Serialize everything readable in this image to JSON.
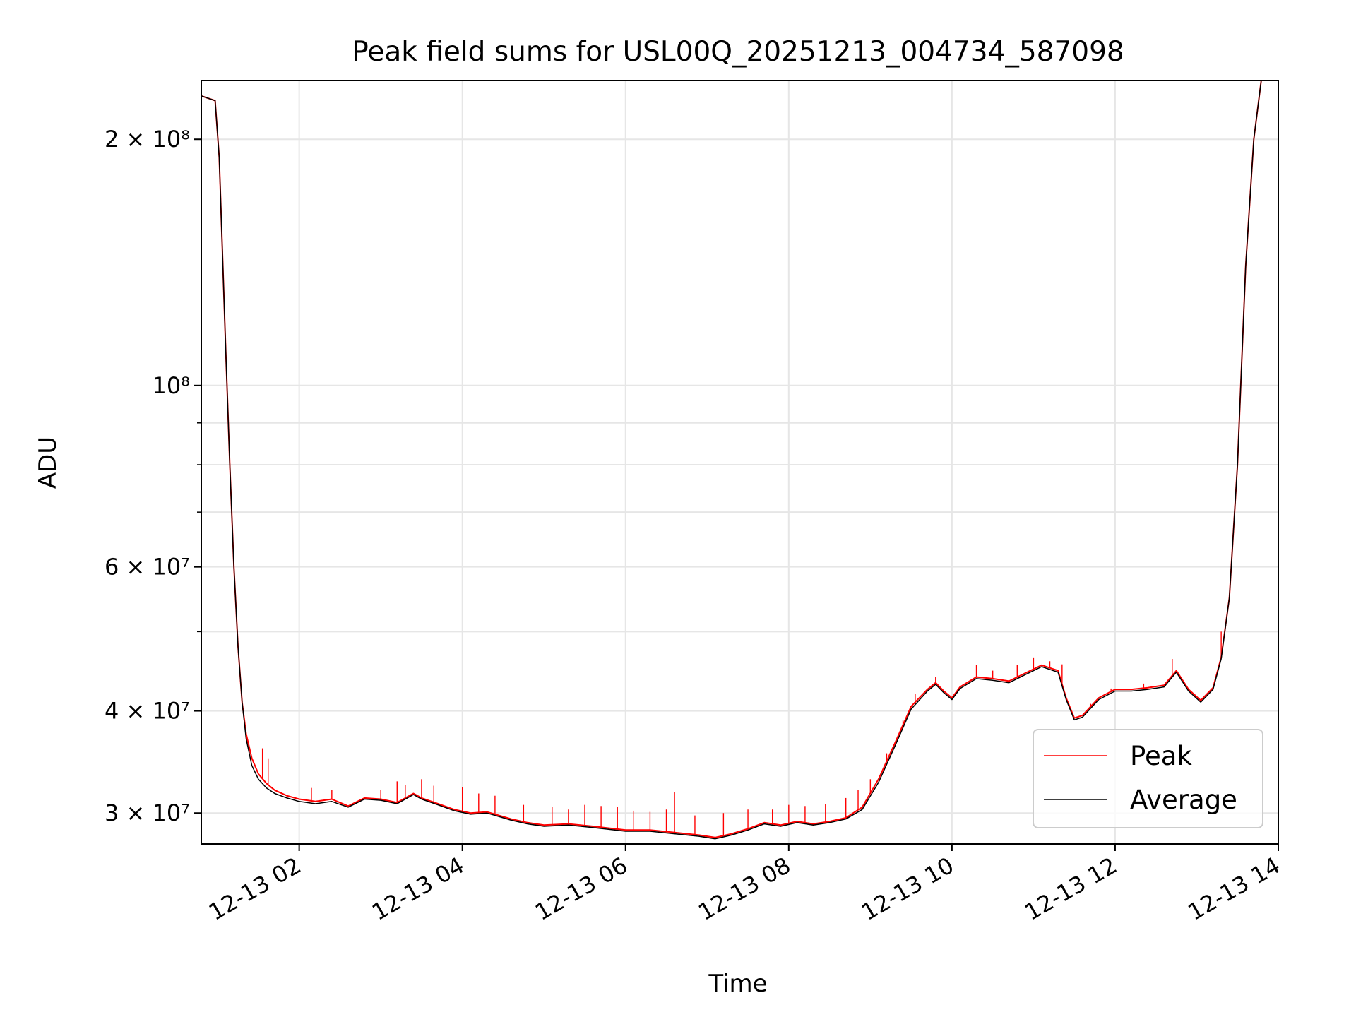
{
  "chart_data": {
    "type": "line",
    "title": "Peak field sums for USL00Q_20251213_004734_587098",
    "xlabel": "Time",
    "ylabel": "ADU",
    "x_unit": "hours on 12-13",
    "xlim": [
      0.8,
      14.0
    ],
    "ylim": [
      27500000,
      236000000
    ],
    "y_scale": "log",
    "grid": true,
    "legend_position": "lower-right",
    "x_ticks": [
      {
        "value": 2,
        "label": "12-13 02"
      },
      {
        "value": 4,
        "label": "12-13 04"
      },
      {
        "value": 6,
        "label": "12-13 06"
      },
      {
        "value": 8,
        "label": "12-13 08"
      },
      {
        "value": 10,
        "label": "12-13 10"
      },
      {
        "value": 12,
        "label": "12-13 12"
      },
      {
        "value": 14,
        "label": "12-13 14"
      }
    ],
    "y_major_ticks": [
      {
        "value": 30000000,
        "label": "3 × 10⁷"
      },
      {
        "value": 40000000,
        "label": "4 × 10⁷"
      },
      {
        "value": 60000000,
        "label": "6 × 10⁷"
      },
      {
        "value": 100000000,
        "label": "10⁸"
      },
      {
        "value": 200000000,
        "label": "2 × 10⁸"
      }
    ],
    "y_minor_ticks": [
      50000000,
      70000000,
      80000000,
      90000000
    ],
    "series": [
      {
        "name": "Peak",
        "color": "#ff0000",
        "x": [
          0.8,
          0.97,
          1.02,
          1.1,
          1.15,
          1.2,
          1.25,
          1.3,
          1.35,
          1.42,
          1.5,
          1.6,
          1.7,
          1.85,
          2.0,
          2.2,
          2.4,
          2.6,
          2.8,
          3.0,
          3.2,
          3.4,
          3.5,
          3.7,
          3.9,
          4.1,
          4.3,
          4.6,
          4.8,
          5.0,
          5.3,
          5.6,
          6.0,
          6.3,
          6.6,
          6.9,
          7.1,
          7.3,
          7.5,
          7.7,
          7.9,
          8.1,
          8.3,
          8.5,
          8.7,
          8.9,
          9.1,
          9.3,
          9.5,
          9.7,
          9.8,
          9.9,
          10.0,
          10.1,
          10.3,
          10.5,
          10.7,
          10.9,
          11.1,
          11.3,
          11.4,
          11.5,
          11.6,
          11.8,
          12.0,
          12.2,
          12.4,
          12.6,
          12.75,
          12.9,
          13.05,
          13.2,
          13.3,
          13.4,
          13.5,
          13.6,
          13.7,
          13.8,
          13.85
        ],
        "y": [
          226000000,
          223000000,
          190000000,
          110000000,
          80000000,
          60000000,
          48000000,
          41000000,
          37500000,
          35000000,
          33500000,
          32600000,
          32000000,
          31500000,
          31200000,
          31000000,
          31200000,
          30600000,
          31300000,
          31200000,
          30900000,
          31700000,
          31300000,
          30800000,
          30300000,
          30000000,
          30100000,
          29500000,
          29200000,
          29000000,
          29100000,
          28900000,
          28600000,
          28600000,
          28400000,
          28200000,
          28000000,
          28300000,
          28700000,
          29200000,
          29000000,
          29300000,
          29100000,
          29300000,
          29600000,
          30500000,
          33000000,
          36500000,
          40500000,
          42500000,
          43300000,
          42300000,
          41500000,
          42800000,
          44000000,
          43800000,
          43500000,
          44500000,
          45500000,
          44800000,
          41500000,
          39200000,
          39500000,
          41500000,
          42500000,
          42500000,
          42700000,
          43000000,
          44800000,
          42500000,
          41200000,
          42700000,
          46500000,
          55000000,
          80000000,
          140000000,
          200000000,
          240000000,
          240000000
        ],
        "spikes": [
          {
            "x": 1.55,
            "y": 36000000
          },
          {
            "x": 1.62,
            "y": 35000000
          },
          {
            "x": 2.15,
            "y": 32200000
          },
          {
            "x": 2.4,
            "y": 32000000
          },
          {
            "x": 3.0,
            "y": 32000000
          },
          {
            "x": 3.2,
            "y": 32800000
          },
          {
            "x": 3.3,
            "y": 32500000
          },
          {
            "x": 3.5,
            "y": 33000000
          },
          {
            "x": 3.65,
            "y": 32400000
          },
          {
            "x": 4.0,
            "y": 32300000
          },
          {
            "x": 4.2,
            "y": 31700000
          },
          {
            "x": 4.4,
            "y": 31500000
          },
          {
            "x": 4.75,
            "y": 30700000
          },
          {
            "x": 5.1,
            "y": 30500000
          },
          {
            "x": 5.3,
            "y": 30300000
          },
          {
            "x": 5.5,
            "y": 30700000
          },
          {
            "x": 5.7,
            "y": 30600000
          },
          {
            "x": 5.9,
            "y": 30500000
          },
          {
            "x": 6.1,
            "y": 30200000
          },
          {
            "x": 6.3,
            "y": 30100000
          },
          {
            "x": 6.5,
            "y": 30300000
          },
          {
            "x": 6.6,
            "y": 31800000
          },
          {
            "x": 6.85,
            "y": 29800000
          },
          {
            "x": 7.2,
            "y": 30000000
          },
          {
            "x": 7.5,
            "y": 30300000
          },
          {
            "x": 7.8,
            "y": 30300000
          },
          {
            "x": 8.0,
            "y": 30700000
          },
          {
            "x": 8.2,
            "y": 30600000
          },
          {
            "x": 8.45,
            "y": 30800000
          },
          {
            "x": 8.7,
            "y": 31300000
          },
          {
            "x": 8.85,
            "y": 32000000
          },
          {
            "x": 9.0,
            "y": 33000000
          },
          {
            "x": 9.2,
            "y": 35500000
          },
          {
            "x": 9.4,
            "y": 39000000
          },
          {
            "x": 9.55,
            "y": 42000000
          },
          {
            "x": 9.8,
            "y": 44000000
          },
          {
            "x": 10.3,
            "y": 45500000
          },
          {
            "x": 10.5,
            "y": 44800000
          },
          {
            "x": 10.8,
            "y": 45500000
          },
          {
            "x": 11.0,
            "y": 46500000
          },
          {
            "x": 11.2,
            "y": 46000000
          },
          {
            "x": 11.35,
            "y": 45600000
          },
          {
            "x": 11.7,
            "y": 40800000
          },
          {
            "x": 11.95,
            "y": 42600000
          },
          {
            "x": 12.35,
            "y": 43200000
          },
          {
            "x": 12.7,
            "y": 46300000
          },
          {
            "x": 13.3,
            "y": 50000000
          }
        ]
      },
      {
        "name": "Average",
        "color": "#000000",
        "x": [
          0.8,
          0.97,
          1.02,
          1.1,
          1.15,
          1.2,
          1.25,
          1.3,
          1.35,
          1.42,
          1.5,
          1.6,
          1.7,
          1.85,
          2.0,
          2.2,
          2.4,
          2.6,
          2.8,
          3.0,
          3.2,
          3.4,
          3.5,
          3.7,
          3.9,
          4.1,
          4.3,
          4.6,
          4.8,
          5.0,
          5.3,
          5.6,
          6.0,
          6.3,
          6.6,
          6.9,
          7.1,
          7.3,
          7.5,
          7.7,
          7.9,
          8.1,
          8.3,
          8.5,
          8.7,
          8.9,
          9.1,
          9.3,
          9.5,
          9.7,
          9.8,
          9.9,
          10.0,
          10.1,
          10.3,
          10.5,
          10.7,
          10.9,
          11.1,
          11.3,
          11.4,
          11.5,
          11.6,
          11.8,
          12.0,
          12.2,
          12.4,
          12.6,
          12.75,
          12.9,
          13.05,
          13.2,
          13.3,
          13.4,
          13.5,
          13.6,
          13.7,
          13.8,
          13.85
        ],
        "y": [
          226000000,
          223000000,
          190000000,
          110000000,
          80000000,
          60000000,
          48000000,
          41000000,
          37000000,
          34300000,
          33000000,
          32200000,
          31700000,
          31300000,
          31000000,
          30800000,
          31000000,
          30500000,
          31200000,
          31100000,
          30800000,
          31600000,
          31200000,
          30700000,
          30200000,
          29900000,
          30000000,
          29400000,
          29100000,
          28900000,
          29000000,
          28800000,
          28500000,
          28500000,
          28300000,
          28100000,
          27900000,
          28200000,
          28600000,
          29100000,
          28900000,
          29200000,
          29000000,
          29200000,
          29500000,
          30300000,
          32700000,
          36200000,
          40200000,
          42300000,
          43100000,
          42100000,
          41300000,
          42600000,
          43800000,
          43600000,
          43300000,
          44300000,
          45300000,
          44600000,
          41300000,
          39000000,
          39300000,
          41300000,
          42300000,
          42300000,
          42500000,
          42800000,
          44600000,
          42300000,
          41000000,
          42500000,
          46300000,
          55000000,
          80000000,
          140000000,
          200000000,
          240000000,
          240000000
        ]
      }
    ]
  }
}
